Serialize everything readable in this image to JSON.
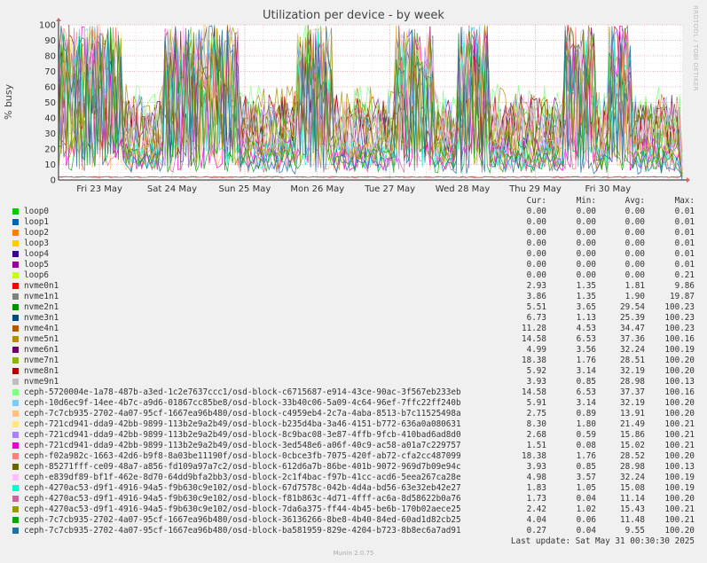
{
  "page": {
    "watermark": "RRDTOOL / TOBI OETIKER",
    "last_update": "Last update: Sat May 31 00:30:30 2025",
    "footer": "Munin 2.0.75"
  },
  "legend_headers": {
    "cur": "Cur:",
    "min": "Min:",
    "avg": "Avg:",
    "max": "Max:"
  },
  "chart_data": {
    "type": "line",
    "title": "Utilization per device - by week",
    "ylabel": "% busy",
    "ylim": [
      0,
      100
    ],
    "yticks": [
      0,
      10,
      20,
      30,
      40,
      50,
      60,
      70,
      80,
      90,
      100
    ],
    "xlim": [
      "2025-05-22T10:30",
      "2025-05-31T00:30"
    ],
    "xticks": [
      {
        "label": "Fri 23 May",
        "t": "2025-05-23T00:00"
      },
      {
        "label": "Sat 24 May",
        "t": "2025-05-24T00:00"
      },
      {
        "label": "Sun 25 May",
        "t": "2025-05-25T00:00"
      },
      {
        "label": "Mon 26 May",
        "t": "2025-05-26T00:00"
      },
      {
        "label": "Tue 27 May",
        "t": "2025-05-27T00:00"
      },
      {
        "label": "Wed 28 May",
        "t": "2025-05-28T00:00"
      },
      {
        "label": "Thu 29 May",
        "t": "2025-05-29T00:00"
      },
      {
        "label": "Fri 30 May",
        "t": "2025-05-30T00:00"
      }
    ],
    "grid": true,
    "legend_position": "bottom",
    "series": [
      {
        "name": "loop0",
        "color": "#00cc00",
        "cur": "0.00",
        "min": "0.00",
        "avg": "0.00",
        "max": "0.01"
      },
      {
        "name": "loop1",
        "color": "#0066b3",
        "cur": "0.00",
        "min": "0.00",
        "avg": "0.00",
        "max": "0.01"
      },
      {
        "name": "loop2",
        "color": "#ff8000",
        "cur": "0.00",
        "min": "0.00",
        "avg": "0.00",
        "max": "0.01"
      },
      {
        "name": "loop3",
        "color": "#ffcc00",
        "cur": "0.00",
        "min": "0.00",
        "avg": "0.00",
        "max": "0.01"
      },
      {
        "name": "loop4",
        "color": "#330099",
        "cur": "0.00",
        "min": "0.00",
        "avg": "0.00",
        "max": "0.01"
      },
      {
        "name": "loop5",
        "color": "#990099",
        "cur": "0.00",
        "min": "0.00",
        "avg": "0.00",
        "max": "0.01"
      },
      {
        "name": "loop6",
        "color": "#ccff00",
        "cur": "0.00",
        "min": "0.00",
        "avg": "0.00",
        "max": "0.21"
      },
      {
        "name": "nvme0n1",
        "color": "#ff0000",
        "cur": "2.93",
        "min": "1.35",
        "avg": "1.81",
        "max": "9.86"
      },
      {
        "name": "nvme1n1",
        "color": "#808080",
        "cur": "3.86",
        "min": "1.35",
        "avg": "1.90",
        "max": "19.87"
      },
      {
        "name": "nvme2n1",
        "color": "#008f00",
        "cur": "5.51",
        "min": "3.65",
        "avg": "29.54",
        "max": "100.23"
      },
      {
        "name": "nvme3n1",
        "color": "#00487d",
        "cur": "6.73",
        "min": "1.13",
        "avg": "25.39",
        "max": "100.23"
      },
      {
        "name": "nvme4n1",
        "color": "#b35a00",
        "cur": "11.28",
        "min": "4.53",
        "avg": "34.47",
        "max": "100.23"
      },
      {
        "name": "nvme5n1",
        "color": "#b38f00",
        "cur": "14.58",
        "min": "6.53",
        "avg": "37.36",
        "max": "100.16"
      },
      {
        "name": "nvme6n1",
        "color": "#6b006b",
        "cur": "4.99",
        "min": "3.56",
        "avg": "32.24",
        "max": "100.19"
      },
      {
        "name": "nvme7n1",
        "color": "#8fb300",
        "cur": "18.38",
        "min": "1.76",
        "avg": "28.51",
        "max": "100.20"
      },
      {
        "name": "nvme8n1",
        "color": "#b30000",
        "cur": "5.92",
        "min": "3.14",
        "avg": "32.19",
        "max": "100.20"
      },
      {
        "name": "nvme9n1",
        "color": "#bebebe",
        "cur": "3.93",
        "min": "0.85",
        "avg": "28.98",
        "max": "100.13"
      },
      {
        "name": "ceph-5720004e-1a78-487b-a3ed-1c2e7637ccc1/osd-block-c6715687-e914-43ce-90ac-3f567eb233eb",
        "color": "#80ff80",
        "cur": "14.58",
        "min": "6.53",
        "avg": "37.37",
        "max": "100.16"
      },
      {
        "name": "ceph-10d6ec9f-14ee-4b7c-a9d6-01867cc85be8/osd-block-33b40c06-5a09-4c64-96ef-7ffc22ff240b",
        "color": "#80c9ff",
        "cur": "5.91",
        "min": "3.14",
        "avg": "32.19",
        "max": "100.20"
      },
      {
        "name": "ceph-7c7cb935-2702-4a07-95cf-1667ea96b480/osd-block-c4959eb4-2c7a-4aba-8513-b7c11525498a",
        "color": "#ffc080",
        "cur": "2.75",
        "min": "0.89",
        "avg": "13.91",
        "max": "100.20"
      },
      {
        "name": "ceph-721cd941-dda9-42bb-9899-113b2e9a2b49/osd-block-b235d4ba-3a46-4151-b772-636a0a080631",
        "color": "#ffe680",
        "cur": "8.30",
        "min": "1.80",
        "avg": "21.49",
        "max": "100.21"
      },
      {
        "name": "ceph-721cd941-dda9-42bb-9899-113b2e9a2b49/osd-block-8c9bac08-3e87-4ffb-9fcb-410bad6ad8d0",
        "color": "#aa80ff",
        "cur": "2.68",
        "min": "0.59",
        "avg": "15.86",
        "max": "100.21"
      },
      {
        "name": "ceph-721cd941-dda9-42bb-9899-113b2e9a2b49/osd-block-3ed548e6-a06f-40c9-ac58-a01a7c229757",
        "color": "#ee00cc",
        "cur": "1.51",
        "min": "0.08",
        "avg": "15.02",
        "max": "100.21"
      },
      {
        "name": "ceph-f02a982c-1663-42d6-b9f8-8a03be11190f/osd-block-0cbce3fb-7075-420f-ab72-cfa2cc487099",
        "color": "#ff8080",
        "cur": "18.38",
        "min": "1.76",
        "avg": "28.52",
        "max": "100.20"
      },
      {
        "name": "ceph-85271fff-ce09-48a7-a856-fd109a97a7c2/osd-block-612d6a7b-86be-401b-9072-969d7b09e94c",
        "color": "#666600",
        "cur": "3.93",
        "min": "0.85",
        "avg": "28.98",
        "max": "100.13"
      },
      {
        "name": "ceph-e839df89-bf1f-462e-8d70-64dd9bfa2bb3/osd-block-2c1f4bac-f97b-41cc-acd6-5eea267ca28e",
        "color": "#ffbfff",
        "cur": "4.98",
        "min": "3.57",
        "avg": "32.24",
        "max": "100.19"
      },
      {
        "name": "ceph-4270ac53-d9f1-4916-94a5-f9b630c9e102/osd-block-67d7578c-042b-4d4a-bd56-63e32eb42e27",
        "color": "#00ffcc",
        "cur": "1.83",
        "min": "1.05",
        "avg": "15.08",
        "max": "100.19"
      },
      {
        "name": "ceph-4270ac53-d9f1-4916-94a5-f9b630c9e102/osd-block-f81b863c-4d71-4fff-ac6a-8d58622b0a76",
        "color": "#cc6699",
        "cur": "1.73",
        "min": "0.04",
        "avg": "11.14",
        "max": "100.20"
      },
      {
        "name": "ceph-4270ac53-d9f1-4916-94a5-f9b630c9e102/osd-block-7da6a375-ff44-4b45-be6b-170b02aece25",
        "color": "#999900",
        "cur": "2.42",
        "min": "1.02",
        "avg": "15.43",
        "max": "100.21"
      },
      {
        "name": "ceph-7c7cb935-2702-4a07-95cf-1667ea96b480/osd-block-36136266-8be8-4b40-84ed-60ad1d82cb25",
        "color": "#0aa60a",
        "cur": "4.04",
        "min": "0.06",
        "avg": "11.48",
        "max": "100.21"
      },
      {
        "name": "ceph-7c7cb935-2702-4a07-95cf-1667ea96b480/osd-block-ba581959-829e-4204-b723-8b8ec6a7ad91",
        "color": "#1f6fa0",
        "cur": "0.27",
        "min": "0.04",
        "avg": "9.55",
        "max": "100.20"
      }
    ]
  }
}
